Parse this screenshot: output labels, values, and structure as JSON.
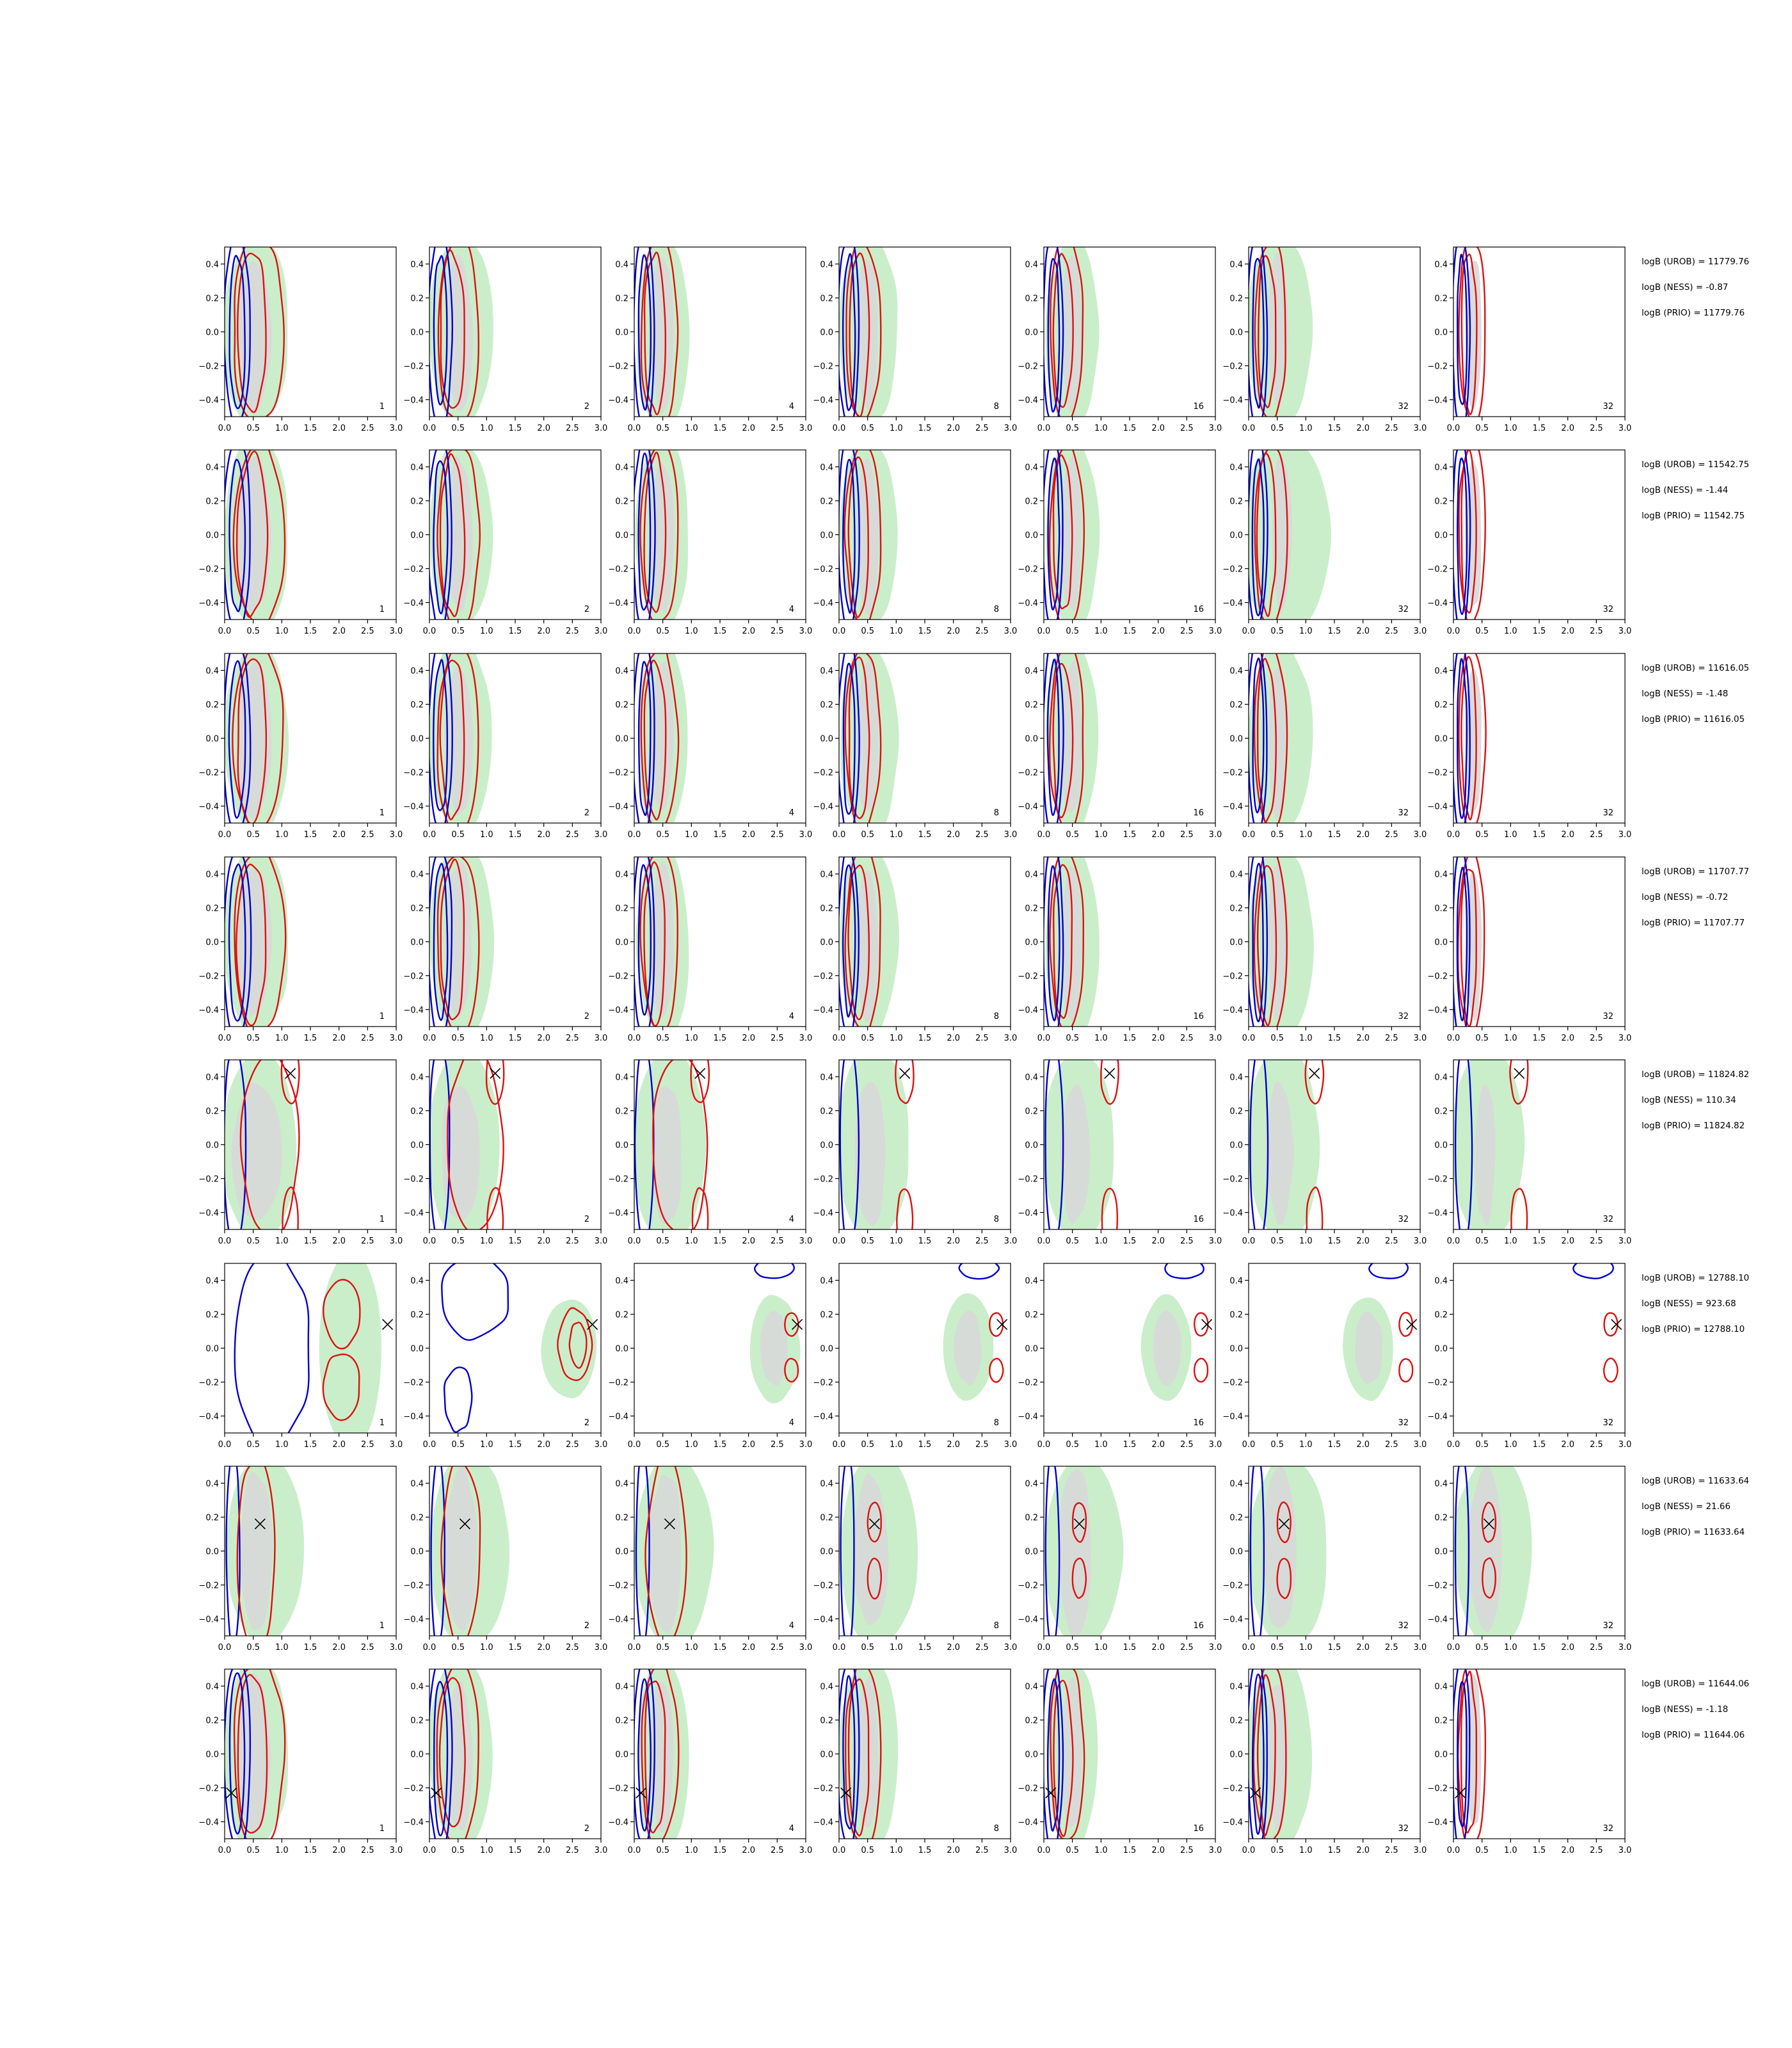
{
  "figure": {
    "layout": "8 rows x 7 panels + evidence annotations",
    "panel_labels": [
      "1",
      "2",
      "4",
      "8",
      "16",
      "32",
      "32"
    ],
    "x_ticks": [
      "0.0",
      "0.5",
      "1.0",
      "1.5",
      "2.0",
      "2.5",
      "3.0"
    ],
    "y_ticks": [
      "0.4",
      "0.2",
      "0.0",
      "−0.2",
      "−0.4"
    ],
    "colors": {
      "green_fill": "#c4ecc4",
      "grey_fill": "#d8d8d8",
      "blue_line": "#0000cc",
      "red_line": "#dd1111",
      "marker": "#000000"
    }
  },
  "chart_data": [
    {
      "type": "contour",
      "row": 1,
      "xlim": [
        0,
        3
      ],
      "ylim": [
        -0.5,
        0.5
      ],
      "marker": null,
      "annotations": [
        "logB (UROB) = 11779.76",
        "logB (NESS) = -0.87",
        "logB (PRIO) = 11779.76"
      ]
    },
    {
      "type": "contour",
      "row": 2,
      "xlim": [
        0,
        3
      ],
      "ylim": [
        -0.5,
        0.5
      ],
      "marker": null,
      "annotations": [
        "logB (UROB) = 11542.75",
        "logB (NESS) = -1.44",
        "logB (PRIO) = 11542.75"
      ]
    },
    {
      "type": "contour",
      "row": 3,
      "xlim": [
        0,
        3
      ],
      "ylim": [
        -0.5,
        0.5
      ],
      "marker": null,
      "annotations": [
        "logB (UROB) = 11616.05",
        "logB (NESS) = -1.48",
        "logB (PRIO) = 11616.05"
      ]
    },
    {
      "type": "contour",
      "row": 4,
      "xlim": [
        0,
        3
      ],
      "ylim": [
        -0.5,
        0.5
      ],
      "marker": null,
      "annotations": [
        "logB (UROB) = 11707.77",
        "logB (NESS) = -0.72",
        "logB (PRIO) = 11707.77"
      ]
    },
    {
      "type": "contour",
      "row": 5,
      "xlim": [
        0,
        3
      ],
      "ylim": [
        -0.5,
        0.5
      ],
      "marker": [
        1.15,
        0.42
      ],
      "annotations": [
        "logB (UROB) = 11824.82",
        "logB (NESS) = 110.34",
        "logB (PRIO) = 11824.82"
      ]
    },
    {
      "type": "contour",
      "row": 6,
      "xlim": [
        0,
        3
      ],
      "ylim": [
        -0.5,
        0.5
      ],
      "marker": [
        2.85,
        0.14
      ],
      "annotations": [
        "logB (UROB) = 12788.10",
        "logB (NESS) = 923.68",
        "logB (PRIO) = 12788.10"
      ]
    },
    {
      "type": "contour",
      "row": 7,
      "xlim": [
        0,
        3
      ],
      "ylim": [
        -0.5,
        0.5
      ],
      "marker": [
        0.62,
        0.16
      ],
      "annotations": [
        "logB (UROB) = 11633.64",
        "logB (NESS) = 21.66",
        "logB (PRIO) = 11633.64"
      ]
    },
    {
      "type": "contour",
      "row": 8,
      "xlim": [
        0,
        3
      ],
      "ylim": [
        -0.5,
        0.5
      ],
      "marker": [
        0.12,
        -0.23
      ],
      "annotations": [
        "logB (UROB) = 11644.06",
        "logB (NESS) = -1.18",
        "logB (PRIO) = 11644.06"
      ]
    }
  ]
}
